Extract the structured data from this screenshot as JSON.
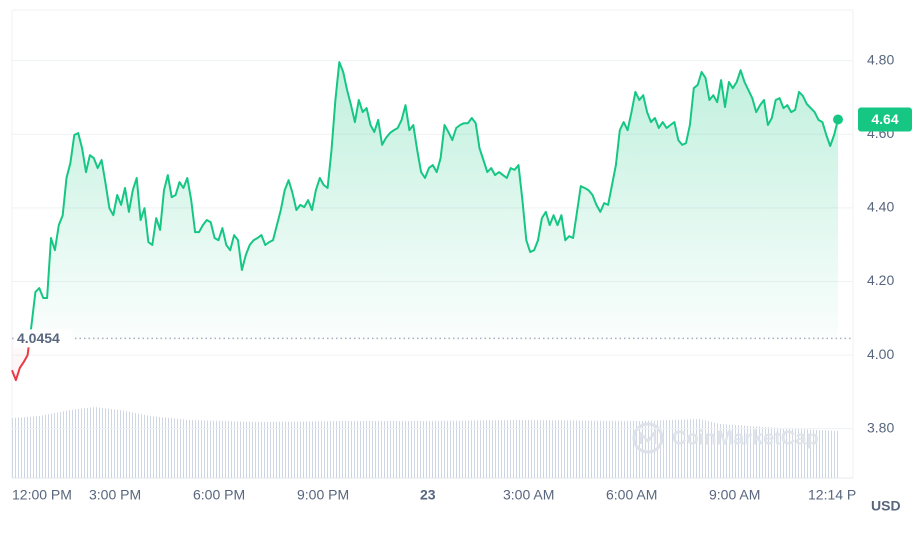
{
  "chart_data": {
    "type": "line",
    "color": "#16c784",
    "below_color": "#ea3943",
    "baseline": 4.0454,
    "currency": "USD",
    "watermark": "CoinMarketCap",
    "ylim": [
      3.666,
      4.9375
    ],
    "yticks": [
      {
        "value": 3.8,
        "label": "3.80"
      },
      {
        "value": 4.0,
        "label": "4.00"
      },
      {
        "value": 4.2,
        "label": "4.20"
      },
      {
        "value": 4.4,
        "label": "4.40"
      },
      {
        "value": 4.6,
        "label": "4.60"
      },
      {
        "value": 4.8,
        "label": "4.80"
      }
    ],
    "grid": true,
    "x_labels": [
      "12:00 PM",
      "3:00 PM",
      "6:00 PM",
      "9:00 PM",
      "23",
      "3:00 AM",
      "6:00 AM",
      "9:00 AM",
      "12:14 P"
    ],
    "values": [
      3.959,
      3.932,
      3.965,
      3.981,
      4.0,
      4.082,
      4.171,
      4.182,
      4.155,
      4.155,
      4.318,
      4.285,
      4.353,
      4.38,
      4.481,
      4.522,
      4.598,
      4.603,
      4.562,
      4.497,
      4.543,
      4.535,
      4.508,
      4.53,
      4.467,
      4.399,
      4.38,
      4.435,
      4.408,
      4.454,
      4.389,
      4.448,
      4.481,
      4.367,
      4.399,
      4.307,
      4.299,
      4.372,
      4.34,
      4.448,
      4.489,
      4.429,
      4.435,
      4.47,
      4.454,
      4.481,
      4.421,
      4.334,
      4.334,
      4.353,
      4.367,
      4.361,
      4.318,
      4.312,
      4.345,
      4.299,
      4.285,
      4.326,
      4.312,
      4.231,
      4.272,
      4.299,
      4.312,
      4.318,
      4.326,
      4.299,
      4.307,
      4.312,
      4.353,
      4.394,
      4.448,
      4.475,
      4.44,
      4.394,
      4.408,
      4.402,
      4.421,
      4.394,
      4.448,
      4.481,
      4.462,
      4.454,
      4.557,
      4.693,
      4.796,
      4.769,
      4.72,
      4.679,
      4.633,
      4.693,
      4.66,
      4.671,
      4.625,
      4.606,
      4.639,
      4.571,
      4.59,
      4.603,
      4.611,
      4.617,
      4.639,
      4.679,
      4.611,
      4.625,
      4.557,
      4.497,
      4.481,
      4.508,
      4.516,
      4.497,
      4.535,
      4.625,
      4.606,
      4.584,
      4.617,
      4.625,
      4.63,
      4.63,
      4.644,
      4.63,
      4.562,
      4.53,
      4.497,
      4.508,
      4.489,
      4.497,
      4.489,
      4.481,
      4.508,
      4.503,
      4.516,
      4.421,
      4.312,
      4.28,
      4.285,
      4.312,
      4.372,
      4.389,
      4.353,
      4.38,
      4.353,
      4.38,
      4.312,
      4.323,
      4.318,
      4.389,
      4.459,
      4.454,
      4.448,
      4.435,
      4.408,
      4.389,
      4.413,
      4.408,
      4.462,
      4.516,
      4.611,
      4.633,
      4.611,
      4.66,
      4.715,
      4.693,
      4.706,
      4.66,
      4.633,
      4.644,
      4.617,
      4.633,
      4.617,
      4.625,
      4.633,
      4.584,
      4.571,
      4.576,
      4.625,
      4.725,
      4.734,
      4.769,
      4.753,
      4.693,
      4.706,
      4.687,
      4.747,
      4.674,
      4.742,
      4.725,
      4.742,
      4.774,
      4.742,
      4.72,
      4.698,
      4.66,
      4.679,
      4.693,
      4.625,
      4.644,
      4.693,
      4.698,
      4.671,
      4.679,
      4.66,
      4.666,
      4.715,
      4.704,
      4.682,
      4.671,
      4.66,
      4.639,
      4.633,
      4.598,
      4.568,
      4.598,
      4.64
    ]
  }
}
